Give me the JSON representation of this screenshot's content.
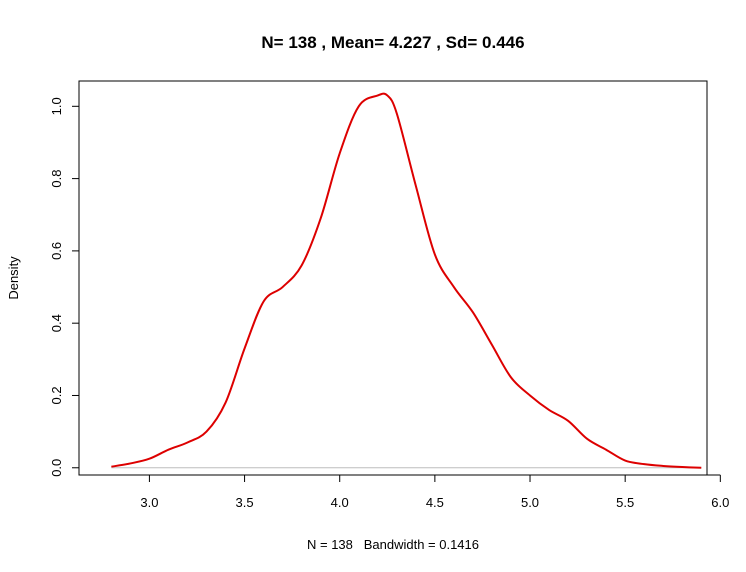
{
  "chart_data": {
    "type": "line",
    "title": "N= 138 , Mean= 4.227 , Sd= 0.446",
    "xlabel": "N = 138   Bandwidth = 0.1416",
    "ylabel": "Density",
    "xlim": [
      2.63,
      5.93
    ],
    "ylim": [
      -0.02,
      1.07
    ],
    "x_ticks": [
      "3.0",
      "3.5",
      "4.0",
      "4.5",
      "5.0",
      "5.5",
      "6.0"
    ],
    "y_ticks": [
      "0.0",
      "0.2",
      "0.4",
      "0.6",
      "0.8",
      "1.0"
    ],
    "baseline": 0,
    "grid": false,
    "colors": {
      "line": "#dd0000",
      "baseline": "#bebebe",
      "axes": "#000000"
    },
    "series": [
      {
        "x": [
          2.8,
          2.9,
          3.0,
          3.1,
          3.2,
          3.3,
          3.4,
          3.5,
          3.6,
          3.7,
          3.8,
          3.9,
          4.0,
          4.1,
          4.2,
          4.25,
          4.3,
          4.4,
          4.5,
          4.6,
          4.7,
          4.8,
          4.9,
          5.0,
          5.1,
          5.2,
          5.3,
          5.4,
          5.5,
          5.6,
          5.7,
          5.8,
          5.9
        ],
        "y": [
          0.003,
          0.012,
          0.025,
          0.05,
          0.07,
          0.1,
          0.18,
          0.33,
          0.46,
          0.5,
          0.56,
          0.69,
          0.87,
          1.0,
          1.03,
          1.03,
          0.98,
          0.78,
          0.59,
          0.5,
          0.43,
          0.34,
          0.25,
          0.2,
          0.16,
          0.13,
          0.08,
          0.05,
          0.02,
          0.01,
          0.005,
          0.002,
          0.0
        ]
      }
    ]
  }
}
